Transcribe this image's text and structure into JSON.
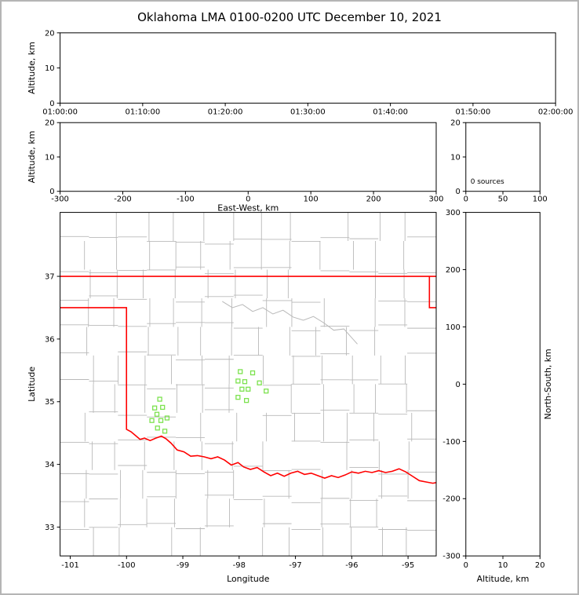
{
  "title": "Oklahoma LMA 0100-0200 UTC December 10, 2021",
  "colors": {
    "figure_border": "#b5b5b5",
    "axis": "#000000",
    "county_lines": "#b9b9b9",
    "state_border": "#ff0000",
    "source_points": "#7ce24e"
  },
  "chart_data": [
    {
      "name": "time-height",
      "type": "scatter",
      "xlabel": "",
      "ylabel": "Altitude, km",
      "xticks": [
        "01:00:00",
        "01:10:00",
        "01:20:00",
        "01:30:00",
        "01:40:00",
        "01:50:00",
        "02:00:00"
      ],
      "ylim": [
        0,
        20
      ],
      "yticks": [
        "0",
        "10",
        "20"
      ],
      "points": []
    },
    {
      "name": "ew-height",
      "type": "scatter",
      "xlabel": "East-West, km",
      "ylabel": "Altitude, km",
      "xlim": [
        -300,
        300
      ],
      "xticks": [
        "-300",
        "-200",
        "-100",
        "0",
        "100",
        "200",
        "300"
      ],
      "ylim": [
        0,
        20
      ],
      "yticks": [
        "0",
        "10",
        "20"
      ],
      "points": []
    },
    {
      "name": "alt-histogram",
      "type": "histogram",
      "annotation": "0 sources",
      "xlim": [
        0,
        100
      ],
      "xticks": [
        "0",
        "50",
        "100"
      ],
      "ylim": [
        0,
        20
      ],
      "yticks": [
        "0",
        "10",
        "20"
      ],
      "values": []
    },
    {
      "name": "plan-view",
      "type": "scatter",
      "xlabel": "Longitude",
      "ylabel": "Latitude",
      "xlim": [
        -101.18,
        -94.5
      ],
      "xticks": [
        "-101",
        "-100",
        "-99",
        "-98",
        "-97",
        "-96",
        "-95"
      ],
      "ylim": [
        32.54,
        38.02
      ],
      "yticks": [
        "33",
        "34",
        "35",
        "36",
        "37"
      ],
      "points": [
        [
          -99.41,
          35.04
        ],
        [
          -99.5,
          34.9
        ],
        [
          -99.36,
          34.91
        ],
        [
          -99.46,
          34.8
        ],
        [
          -99.55,
          34.7
        ],
        [
          -99.39,
          34.7
        ],
        [
          -99.28,
          34.74
        ],
        [
          -99.45,
          34.58
        ],
        [
          -99.32,
          34.53
        ],
        [
          -97.98,
          35.48
        ],
        [
          -97.76,
          35.46
        ],
        [
          -98.02,
          35.33
        ],
        [
          -97.9,
          35.32
        ],
        [
          -97.64,
          35.3
        ],
        [
          -97.95,
          35.2
        ],
        [
          -97.84,
          35.2
        ],
        [
          -98.02,
          35.07
        ],
        [
          -97.87,
          35.02
        ],
        [
          -97.52,
          35.17
        ]
      ],
      "state_border": [
        [
          [
            -101.18,
            37.0
          ],
          [
            -94.5,
            37.0
          ]
        ],
        [
          [
            -101.18,
            36.5
          ],
          [
            -100.0,
            36.5
          ],
          [
            -100.0,
            34.56
          ],
          [
            -99.92,
            34.52
          ],
          [
            -99.84,
            34.46
          ],
          [
            -99.76,
            34.4
          ],
          [
            -99.68,
            34.42
          ],
          [
            -99.58,
            34.38
          ],
          [
            -99.48,
            34.42
          ],
          [
            -99.38,
            34.45
          ],
          [
            -99.3,
            34.41
          ],
          [
            -99.21,
            34.34
          ],
          [
            -99.1,
            34.23
          ],
          [
            -98.98,
            34.2
          ],
          [
            -98.86,
            34.13
          ],
          [
            -98.74,
            34.14
          ],
          [
            -98.62,
            34.12
          ],
          [
            -98.5,
            34.09
          ],
          [
            -98.38,
            34.12
          ],
          [
            -98.26,
            34.07
          ],
          [
            -98.14,
            33.99
          ],
          [
            -98.02,
            34.03
          ],
          [
            -97.92,
            33.96
          ],
          [
            -97.8,
            33.92
          ],
          [
            -97.68,
            33.95
          ],
          [
            -97.56,
            33.88
          ],
          [
            -97.44,
            33.82
          ],
          [
            -97.32,
            33.86
          ],
          [
            -97.2,
            33.81
          ],
          [
            -97.08,
            33.86
          ],
          [
            -96.96,
            33.89
          ],
          [
            -96.84,
            33.84
          ],
          [
            -96.72,
            33.86
          ],
          [
            -96.6,
            33.82
          ],
          [
            -96.48,
            33.78
          ],
          [
            -96.36,
            33.82
          ],
          [
            -96.24,
            33.79
          ],
          [
            -96.12,
            33.83
          ],
          [
            -96.0,
            33.88
          ],
          [
            -95.88,
            33.86
          ],
          [
            -95.76,
            33.89
          ],
          [
            -95.64,
            33.87
          ],
          [
            -95.52,
            33.9
          ],
          [
            -95.4,
            33.87
          ],
          [
            -95.28,
            33.89
          ],
          [
            -95.16,
            33.93
          ],
          [
            -95.04,
            33.88
          ],
          [
            -94.92,
            33.81
          ],
          [
            -94.8,
            33.74
          ],
          [
            -94.68,
            33.72
          ],
          [
            -94.56,
            33.7
          ],
          [
            -94.5,
            33.71
          ]
        ],
        [
          [
            -94.62,
            37.0
          ],
          [
            -94.62,
            36.5
          ],
          [
            -94.5,
            36.5
          ]
        ]
      ],
      "rivers": [
        [
          [
            -98.3,
            36.6
          ],
          [
            -98.12,
            36.5
          ],
          [
            -97.94,
            36.55
          ],
          [
            -97.76,
            36.44
          ],
          [
            -97.58,
            36.5
          ],
          [
            -97.4,
            36.4
          ],
          [
            -97.22,
            36.46
          ],
          [
            -97.04,
            36.35
          ],
          [
            -96.86,
            36.3
          ],
          [
            -96.68,
            36.36
          ],
          [
            -96.5,
            36.26
          ],
          [
            -96.32,
            36.14
          ],
          [
            -96.14,
            36.16
          ],
          [
            -96.0,
            36.02
          ],
          [
            -95.9,
            35.92
          ]
        ]
      ]
    },
    {
      "name": "ns-height",
      "type": "scatter",
      "xlabel": "Altitude, km",
      "ylabel": "North-South, km",
      "xlim": [
        0,
        20
      ],
      "xticks": [
        "0",
        "10",
        "20"
      ],
      "ylim": [
        -300,
        300
      ],
      "yticks": [
        "300",
        "200",
        "100",
        "0",
        "-100",
        "-200",
        "-300"
      ],
      "points": []
    }
  ]
}
